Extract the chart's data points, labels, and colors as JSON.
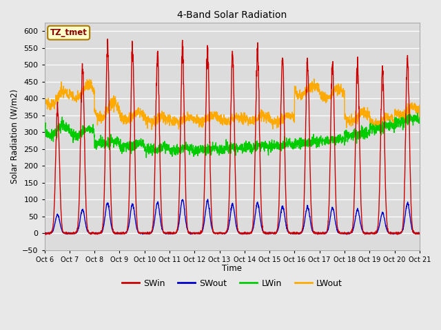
{
  "title": "4-Band Solar Radiation",
  "xlabel": "Time",
  "ylabel": "Solar Radiation (W/m2)",
  "annotation": "TZ_tmet",
  "ylim": [
    -50,
    625
  ],
  "yticks": [
    -50,
    0,
    50,
    100,
    150,
    200,
    250,
    300,
    350,
    400,
    450,
    500,
    550,
    600
  ],
  "n_days": 15,
  "colors": {
    "SWin": "#cc0000",
    "SWout": "#0000cc",
    "LWin": "#00cc00",
    "LWout": "#ffaa00"
  },
  "bg_color": "#e8e8e8",
  "plot_bg": "#dcdcdc",
  "grid_color": "#ffffff",
  "legend_labels": [
    "SWin",
    "SWout",
    "LWin",
    "LWout"
  ],
  "swin_peaks": [
    370,
    490,
    550,
    545,
    530,
    535,
    550,
    525,
    545,
    520,
    510,
    505,
    500,
    480,
    515
  ],
  "swout_peaks": [
    55,
    70,
    90,
    85,
    90,
    100,
    95,
    85,
    90,
    80,
    80,
    75,
    70,
    60,
    90
  ],
  "lwin_day_base": [
    320,
    310,
    270,
    265,
    255,
    250,
    250,
    255,
    260,
    265,
    270,
    280,
    300,
    320,
    340
  ],
  "lwin_night_base": [
    290,
    290,
    265,
    258,
    248,
    245,
    245,
    250,
    255,
    258,
    265,
    275,
    290,
    310,
    330
  ],
  "lwout_day_base": [
    420,
    440,
    390,
    360,
    345,
    345,
    350,
    345,
    350,
    350,
    440,
    430,
    360,
    345,
    375
  ],
  "lwout_night_base": [
    380,
    400,
    340,
    335,
    330,
    330,
    330,
    330,
    335,
    330,
    410,
    400,
    330,
    325,
    350
  ]
}
